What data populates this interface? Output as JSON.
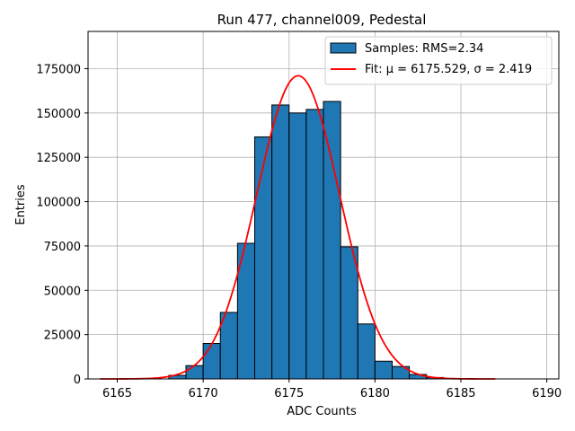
{
  "chart_data": {
    "type": "bar",
    "title": "Run 477, channel009, Pedestal",
    "xlabel": "ADC Counts",
    "ylabel": "Entries",
    "xlim": [
      6163.3,
      6190.7
    ],
    "ylim": [
      0,
      196000
    ],
    "grid": true,
    "legend_position": "top-right",
    "x_ticks": [
      6165,
      6170,
      6175,
      6180,
      6185,
      6190
    ],
    "y_ticks": [
      0,
      25000,
      50000,
      75000,
      100000,
      125000,
      150000,
      175000
    ],
    "bin_width": 1,
    "histogram": {
      "name": "Samples: RMS=2.34",
      "color": "#1f77b4",
      "edge_color": "#000000",
      "bins": [
        {
          "x0": 6168,
          "x1": 6169,
          "value": 2000
        },
        {
          "x0": 6169,
          "x1": 6170,
          "value": 7500
        },
        {
          "x0": 6170,
          "x1": 6171,
          "value": 20000
        },
        {
          "x0": 6171,
          "x1": 6172,
          "value": 37500
        },
        {
          "x0": 6172,
          "x1": 6173,
          "value": 76500
        },
        {
          "x0": 6173,
          "x1": 6174,
          "value": 136500
        },
        {
          "x0": 6174,
          "x1": 6175,
          "value": 154500
        },
        {
          "x0": 6175,
          "x1": 6176,
          "value": 150000
        },
        {
          "x0": 6176,
          "x1": 6177,
          "value": 152000
        },
        {
          "x0": 6177,
          "x1": 6178,
          "value": 156500
        },
        {
          "x0": 6178,
          "x1": 6179,
          "value": 74500
        },
        {
          "x0": 6179,
          "x1": 6180,
          "value": 31000
        },
        {
          "x0": 6180,
          "x1": 6181,
          "value": 10000
        },
        {
          "x0": 6181,
          "x1": 6182,
          "value": 7000
        },
        {
          "x0": 6182,
          "x1": 6183,
          "value": 2500
        },
        {
          "x0": 6183,
          "x1": 6184,
          "value": 800
        }
      ]
    },
    "fit": {
      "name": "Fit: μ = 6175.529, σ = 2.419",
      "color": "#ff0000",
      "mu": 6175.529,
      "sigma": 2.419,
      "amplitude": 171000,
      "x_range": [
        6164,
        6187
      ]
    }
  }
}
